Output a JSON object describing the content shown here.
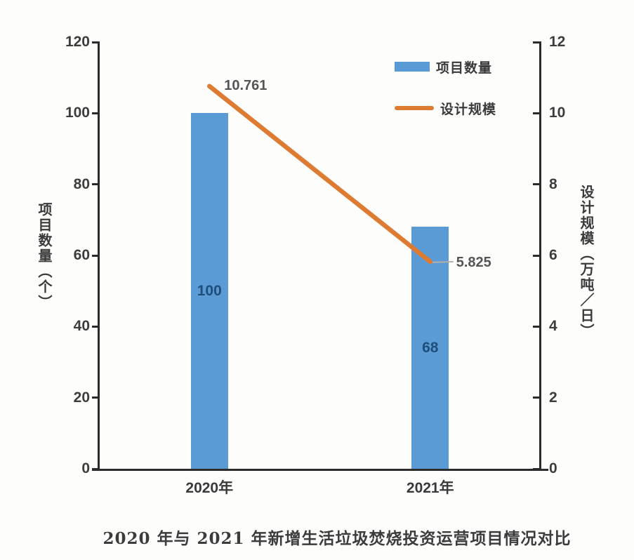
{
  "chart_data": {
    "type": "bar",
    "subtype": "bar+line dual axis",
    "categories": [
      "2020年",
      "2021年"
    ],
    "series": [
      {
        "name": "项目数量",
        "type": "bar",
        "axis": "left",
        "values": [
          100,
          68
        ],
        "labels": [
          "100",
          "68"
        ],
        "color": "#5B9BD5",
        "label_color": "#1F4E79"
      },
      {
        "name": "设计规模",
        "type": "line",
        "axis": "right",
        "values": [
          10.761,
          5.825
        ],
        "labels": [
          "10.761",
          "5.825"
        ],
        "color": "#DD7B33",
        "label_color": "#555555"
      }
    ],
    "left_axis": {
      "title": "项目数量（个）",
      "min": 0,
      "max": 120,
      "step": 20,
      "tick_labels": [
        "0",
        "20",
        "40",
        "60",
        "80",
        "100",
        "120"
      ]
    },
    "right_axis": {
      "title": "设计规模（万吨／日）",
      "min": 0,
      "max": 12,
      "step": 2,
      "tick_labels": [
        "0",
        "2",
        "4",
        "6",
        "8",
        "10",
        "12"
      ]
    },
    "legend": {
      "position": "top-right-inside",
      "entries": [
        "项目数量",
        "设计规模"
      ]
    },
    "grid": false,
    "caption": "2020 年与 2021 年新增生活垃圾焚烧投资运营项目情况对比"
  }
}
